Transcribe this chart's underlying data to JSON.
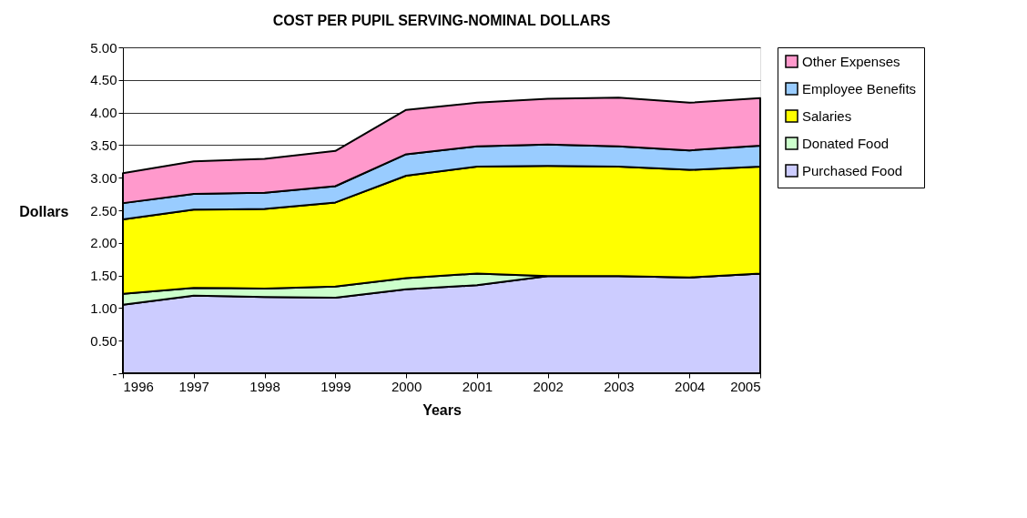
{
  "chart_data": {
    "type": "area",
    "stacked": true,
    "title": "COST PER PUPIL SERVING-NOMINAL DOLLARS",
    "xlabel": "Years",
    "ylabel": "Dollars",
    "x": [
      1996,
      1997,
      1998,
      1999,
      2000,
      2001,
      2002,
      2003,
      2004,
      2005
    ],
    "xlim": [
      1996,
      2005
    ],
    "xticks": [
      1996,
      1997,
      1998,
      1999,
      2000,
      2001,
      2002,
      2003,
      2004,
      2005
    ],
    "ylim": [
      0,
      5
    ],
    "yticks": [
      {
        "value": 0,
        "label": "-"
      },
      {
        "value": 0.5,
        "label": "0.50"
      },
      {
        "value": 1,
        "label": "1.00"
      },
      {
        "value": 1.5,
        "label": "1.50"
      },
      {
        "value": 2,
        "label": "2.00"
      },
      {
        "value": 2.5,
        "label": "2.50"
      },
      {
        "value": 3,
        "label": "3.00"
      },
      {
        "value": 3.5,
        "label": "3.50"
      },
      {
        "value": 4,
        "label": "4.00"
      },
      {
        "value": 4.5,
        "label": "4.50"
      },
      {
        "value": 5,
        "label": "5.00"
      }
    ],
    "grid": "y",
    "legend": "right",
    "series": [
      {
        "name": "Purchased Food",
        "color": "#ccccff",
        "values": [
          1.05,
          1.19,
          1.17,
          1.16,
          1.29,
          1.35,
          1.49,
          1.49,
          1.47,
          1.53
        ]
      },
      {
        "name": "Donated Food",
        "color": "#ccffcc",
        "values": [
          0.17,
          0.12,
          0.13,
          0.17,
          0.17,
          0.18,
          0,
          0,
          0,
          0
        ]
      },
      {
        "name": "Salaries",
        "color": "#ffff00",
        "values": [
          1.14,
          1.2,
          1.22,
          1.29,
          1.57,
          1.64,
          1.69,
          1.68,
          1.65,
          1.64
        ]
      },
      {
        "name": "Employee Benefits",
        "color": "#99ccff",
        "values": [
          0.25,
          0.24,
          0.25,
          0.25,
          0.33,
          0.31,
          0.33,
          0.31,
          0.3,
          0.32
        ]
      },
      {
        "name": "Other Expenses",
        "color": "#ff99cc",
        "values": [
          0.46,
          0.5,
          0.52,
          0.54,
          0.68,
          0.67,
          0.7,
          0.75,
          0.73,
          0.73
        ]
      }
    ]
  }
}
